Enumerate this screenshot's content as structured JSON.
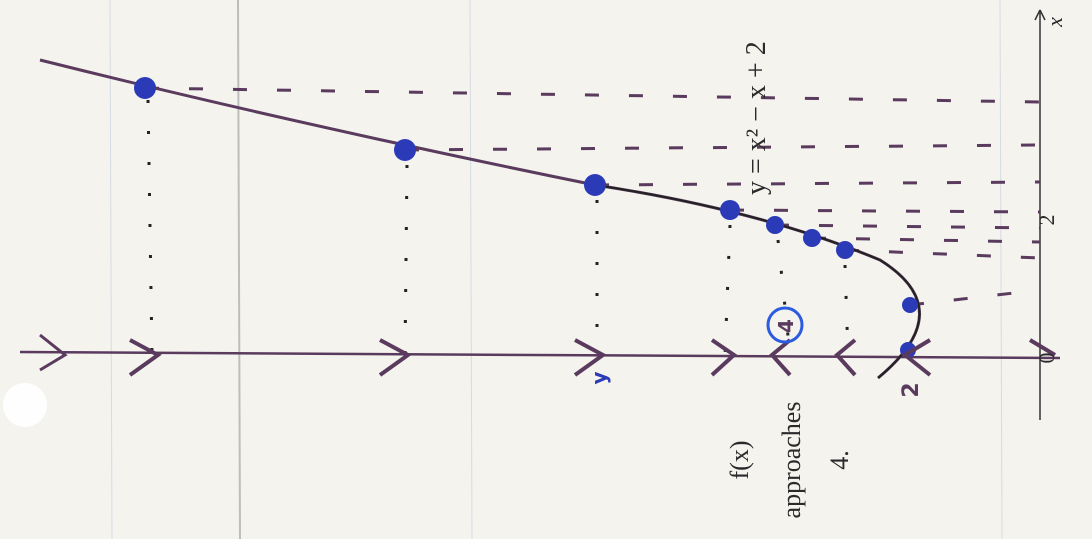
{
  "annotations": {
    "equation": "y = x² − x + 2",
    "note_line1": "f(x)",
    "note_line2": "approaches",
    "note_line3": "4."
  },
  "axis_labels": {
    "x": "x",
    "y": "y"
  },
  "tick_labels": {
    "two": "2",
    "zero": "0"
  },
  "handwritten": {
    "circled": "4",
    "y_intercept": "2"
  }
}
